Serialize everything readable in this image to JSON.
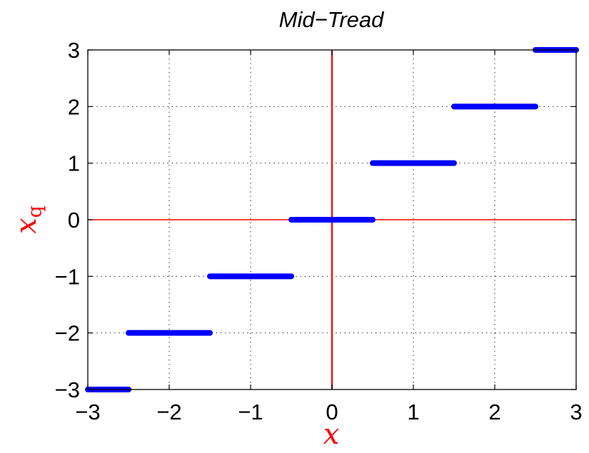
{
  "chart_data": {
    "type": "line",
    "title": "Mid−Tread",
    "xlabel": "x",
    "ylabel": {
      "base": "x",
      "subscript": "q"
    },
    "xlim": [
      -3,
      3
    ],
    "ylim": [
      -3,
      3
    ],
    "xticks": [
      -3,
      -2,
      -1,
      0,
      1,
      2,
      3
    ],
    "yticks": [
      -3,
      -2,
      -1,
      0,
      1,
      2,
      3
    ],
    "xtick_labels": [
      "−3",
      "−2",
      "−1",
      "0",
      "1",
      "2",
      "3"
    ],
    "ytick_labels": [
      "−3",
      "−2",
      "−1",
      "0",
      "1",
      "2",
      "3"
    ],
    "grid": true,
    "colors": {
      "steps": "#0000ff",
      "axes_lines": "#ff0000",
      "label": "#ff0000"
    },
    "series": [
      {
        "segments": [
          {
            "x": [
              -3.0,
              -2.5
            ],
            "y": -3
          },
          {
            "x": [
              -2.5,
              -1.5
            ],
            "y": -2
          },
          {
            "x": [
              -1.5,
              -0.5
            ],
            "y": -1
          },
          {
            "x": [
              -0.5,
              0.5
            ],
            "y": 0
          },
          {
            "x": [
              0.5,
              1.5
            ],
            "y": 1
          },
          {
            "x": [
              1.5,
              2.5
            ],
            "y": 2
          },
          {
            "x": [
              2.5,
              3.0
            ],
            "y": 3
          }
        ]
      }
    ],
    "reference_lines": {
      "x0": true,
      "y0": true
    }
  }
}
